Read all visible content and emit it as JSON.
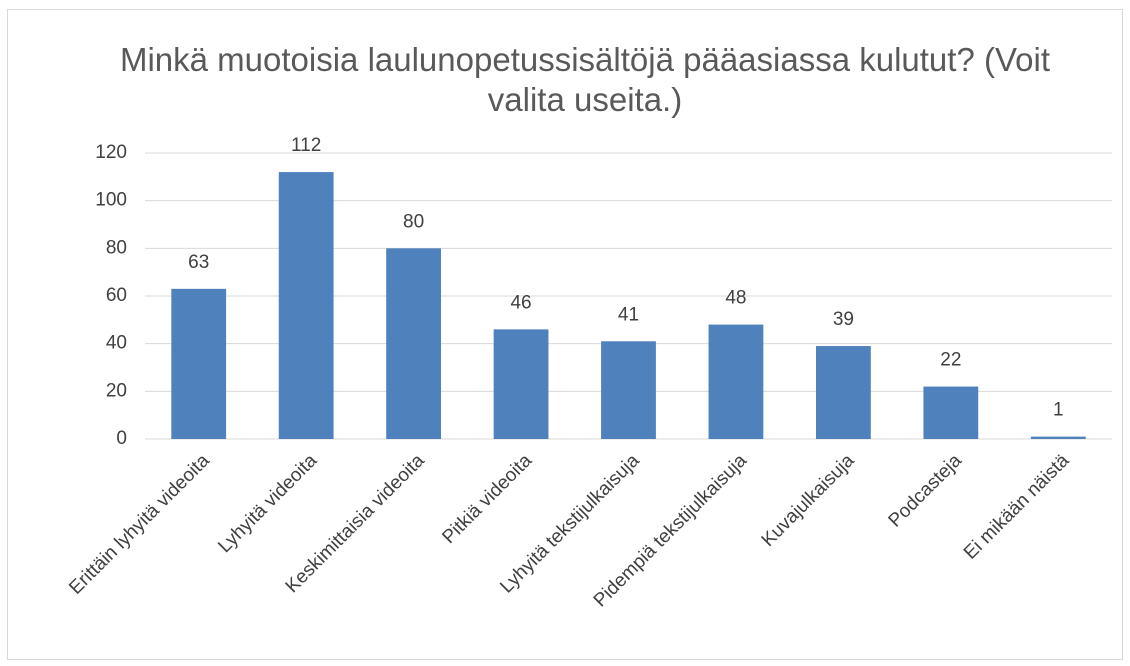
{
  "chart_data": {
    "type": "bar",
    "title": "Minkä muotoisia laulunopetussisältöjä pääasiassa kulutut? (Voit valita useita.)",
    "categories": [
      "Erittäin lyhyitä videoita",
      "Lyhyitä videoita",
      "Keskimittaisia videoita",
      "Pitkiä videoita",
      "Lyhyitä tekstijulkaisuja",
      "Pidempiä tekstijulkaisuja",
      "Kuvajulkaisuja",
      "Podcasteja",
      "Ei mikään näistä"
    ],
    "values": [
      63,
      112,
      80,
      46,
      41,
      48,
      39,
      22,
      1
    ],
    "color": "#4f81bd",
    "ylim": [
      0,
      120
    ],
    "yticks": [
      0,
      20,
      40,
      60,
      80,
      100,
      120
    ],
    "grid": true
  }
}
